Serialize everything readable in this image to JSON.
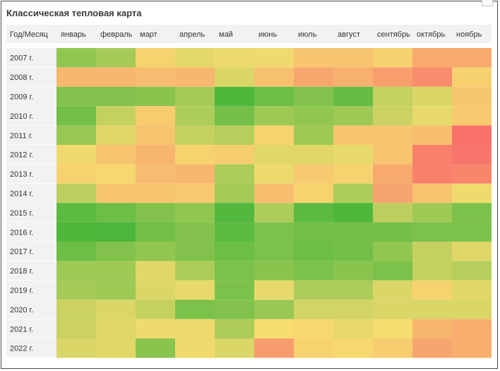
{
  "title": "Классическая тепловая карта",
  "chart_data": {
    "type": "heatmap",
    "corner_label": "Год/Месяц",
    "columns": [
      "январь",
      "февраль",
      "март",
      "апрель",
      "май",
      "июнь",
      "июль",
      "август",
      "сентябрь",
      "октябрь",
      "ноябрь"
    ],
    "rows": [
      "2007 г.",
      "2008 г.",
      "2009 г.",
      "2010 г.",
      "2011 г.",
      "2012 г.",
      "2013 г.",
      "2014 г.",
      "2015 г.",
      "2016 г.",
      "2017 г.",
      "2018 г.",
      "2019 г.",
      "2020 г.",
      "2021 г.",
      "2022 г."
    ],
    "scale": "0 = red (worst) … 0.5 = yellow … 1 = green (best)",
    "values": [
      [
        0.78,
        0.72,
        0.46,
        0.55,
        0.53,
        0.52,
        0.4,
        0.4,
        0.45,
        0.28,
        0.28
      ],
      [
        0.34,
        0.34,
        0.36,
        0.34,
        0.58,
        0.38,
        0.27,
        0.31,
        0.23,
        0.15,
        0.45
      ],
      [
        0.82,
        0.82,
        0.8,
        0.72,
        0.96,
        0.88,
        0.82,
        0.9,
        0.64,
        0.58,
        0.41
      ],
      [
        0.86,
        0.64,
        0.43,
        0.7,
        0.86,
        0.74,
        0.78,
        0.74,
        0.62,
        0.54,
        0.42
      ],
      [
        0.76,
        0.56,
        0.4,
        0.64,
        0.68,
        0.46,
        0.74,
        0.4,
        0.4,
        0.37,
        0.04
      ],
      [
        0.52,
        0.4,
        0.33,
        0.46,
        0.44,
        0.56,
        0.56,
        0.54,
        0.4,
        0.1,
        0.05
      ],
      [
        0.46,
        0.48,
        0.36,
        0.33,
        0.7,
        0.53,
        0.42,
        0.46,
        0.28,
        0.1,
        0.12
      ],
      [
        0.66,
        0.4,
        0.4,
        0.42,
        0.72,
        0.37,
        0.46,
        0.7,
        0.26,
        0.39,
        0.52
      ],
      [
        0.92,
        0.88,
        0.82,
        0.78,
        0.95,
        0.7,
        0.92,
        0.96,
        0.66,
        0.74,
        0.84
      ],
      [
        0.96,
        0.97,
        0.86,
        0.82,
        0.92,
        0.84,
        0.86,
        0.86,
        0.86,
        0.84,
        0.84
      ],
      [
        0.88,
        0.82,
        0.78,
        0.82,
        0.88,
        0.84,
        0.88,
        0.86,
        0.78,
        0.64,
        0.56
      ],
      [
        0.74,
        0.74,
        0.56,
        0.7,
        0.84,
        0.8,
        0.84,
        0.8,
        0.84,
        0.64,
        0.68
      ],
      [
        0.72,
        0.74,
        0.58,
        0.54,
        0.84,
        0.54,
        0.7,
        0.7,
        0.58,
        0.46,
        0.56
      ],
      [
        0.62,
        0.58,
        0.64,
        0.84,
        0.82,
        0.76,
        0.6,
        0.6,
        0.58,
        0.58,
        0.58
      ],
      [
        0.62,
        0.56,
        0.52,
        0.52,
        0.7,
        0.5,
        0.48,
        0.54,
        0.5,
        0.33,
        0.3
      ],
      [
        0.58,
        0.56,
        0.8,
        0.52,
        0.58,
        0.22,
        0.46,
        0.48,
        0.44,
        0.26,
        0.3
      ]
    ]
  }
}
